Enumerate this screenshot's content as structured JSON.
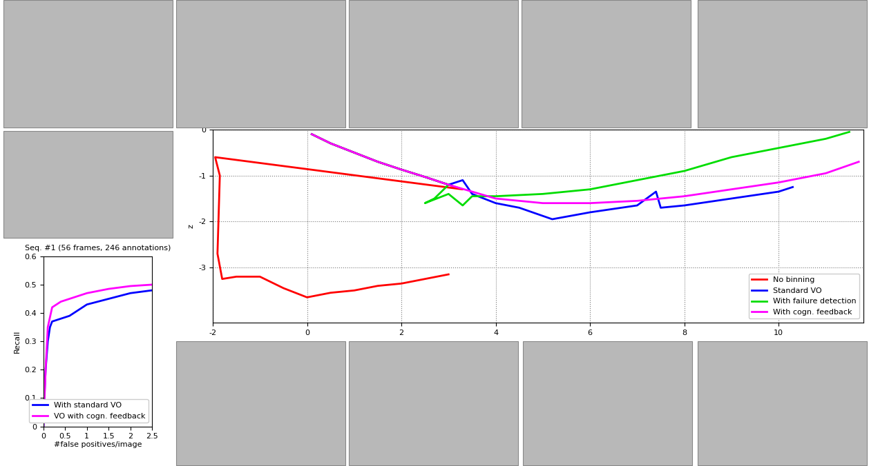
{
  "chart_data": [
    {
      "type": "line",
      "ylabel": "z",
      "xlim": [
        -2,
        11.8
      ],
      "xticks": [
        -2,
        0,
        2,
        4,
        6,
        8,
        10
      ],
      "ylim": [
        -4.2,
        0
      ],
      "yticks": [
        -3,
        -2,
        -1,
        0
      ],
      "grid": true,
      "legend": "lower right",
      "series": [
        {
          "name": "No binning",
          "color": "#ff0000",
          "x": [
            0.1,
            0.5,
            1,
            1.5,
            2,
            2.5,
            3,
            3.3,
            -1.95,
            -1.85,
            -1.9,
            -1.8,
            -1.5,
            -1,
            -0.5,
            0,
            0.5,
            1,
            1.5,
            2,
            2.5,
            3
          ],
          "values": [
            -0.1,
            -0.3,
            -0.5,
            -0.7,
            -0.87,
            -1.03,
            -1.2,
            -1.3,
            -0.6,
            -1.0,
            -2.7,
            -3.25,
            -3.2,
            -3.2,
            -3.45,
            -3.65,
            -3.55,
            -3.5,
            -3.4,
            -3.35,
            -3.25,
            -3.15
          ]
        },
        {
          "name": "Standard VO",
          "color": "#0000ff",
          "x": [
            0.1,
            0.5,
            1,
            1.5,
            2,
            2.5,
            3,
            3.3,
            3.5,
            4,
            4.5,
            5.2,
            6,
            7,
            7.4,
            7.5,
            8,
            9,
            10,
            10.3
          ],
          "values": [
            -0.1,
            -0.3,
            -0.5,
            -0.7,
            -0.87,
            -1.03,
            -1.2,
            -1.1,
            -1.4,
            -1.6,
            -1.7,
            -1.95,
            -1.8,
            -1.65,
            -1.35,
            -1.7,
            -1.65,
            -1.5,
            -1.35,
            -1.25
          ]
        },
        {
          "name": "With failure detection",
          "color": "#00dd00",
          "x": [
            0.1,
            0.5,
            1,
            1.5,
            2,
            2.5,
            3,
            2.7,
            2.5,
            3,
            3.3,
            3.5,
            4,
            5,
            6,
            7,
            8,
            9,
            10,
            11,
            11.5
          ],
          "values": [
            -0.1,
            -0.3,
            -0.5,
            -0.7,
            -0.87,
            -1.03,
            -1.2,
            -1.5,
            -1.6,
            -1.4,
            -1.65,
            -1.45,
            -1.45,
            -1.4,
            -1.3,
            -1.1,
            -0.9,
            -0.6,
            -0.4,
            -0.2,
            -0.05
          ]
        },
        {
          "name": "With cogn. feedback",
          "color": "#ff00ff",
          "x": [
            0.1,
            0.5,
            1,
            1.5,
            2,
            2.5,
            3,
            3.5,
            4,
            5,
            6,
            7,
            8,
            9,
            10,
            11,
            11.7
          ],
          "values": [
            -0.1,
            -0.3,
            -0.5,
            -0.7,
            -0.87,
            -1.03,
            -1.2,
            -1.35,
            -1.5,
            -1.6,
            -1.6,
            -1.55,
            -1.45,
            -1.3,
            -1.15,
            -0.95,
            -0.7
          ]
        }
      ]
    },
    {
      "type": "line",
      "title": "Seq. #1 (56 frames, 246 annotations)",
      "xlabel": "#false positives/image",
      "ylabel": "Recall",
      "xlim": [
        0,
        2.5
      ],
      "xticks": [
        0,
        0.5,
        1,
        1.5,
        2,
        2.5
      ],
      "ylim": [
        0,
        0.6
      ],
      "yticks": [
        0,
        0.1,
        0.2,
        0.3,
        0.4,
        0.5,
        0.6
      ],
      "grid": false,
      "legend": "lower right",
      "series": [
        {
          "name": "With standard VO",
          "color": "#0000ff",
          "x": [
            0,
            0.02,
            0.05,
            0.1,
            0.15,
            0.2,
            0.4,
            0.6,
            0.8,
            1,
            1.5,
            2,
            2.5
          ],
          "values": [
            0,
            0.1,
            0.2,
            0.3,
            0.35,
            0.37,
            0.38,
            0.39,
            0.41,
            0.43,
            0.45,
            0.47,
            0.48
          ]
        },
        {
          "name": "VO with cogn. feedback",
          "color": "#ff00ff",
          "x": [
            0,
            0.05,
            0.1,
            0.2,
            0.4,
            0.6,
            0.8,
            1,
            1.5,
            2,
            2.5
          ],
          "values": [
            0,
            0.2,
            0.35,
            0.42,
            0.44,
            0.45,
            0.46,
            0.47,
            0.485,
            0.495,
            0.5
          ]
        }
      ]
    }
  ]
}
